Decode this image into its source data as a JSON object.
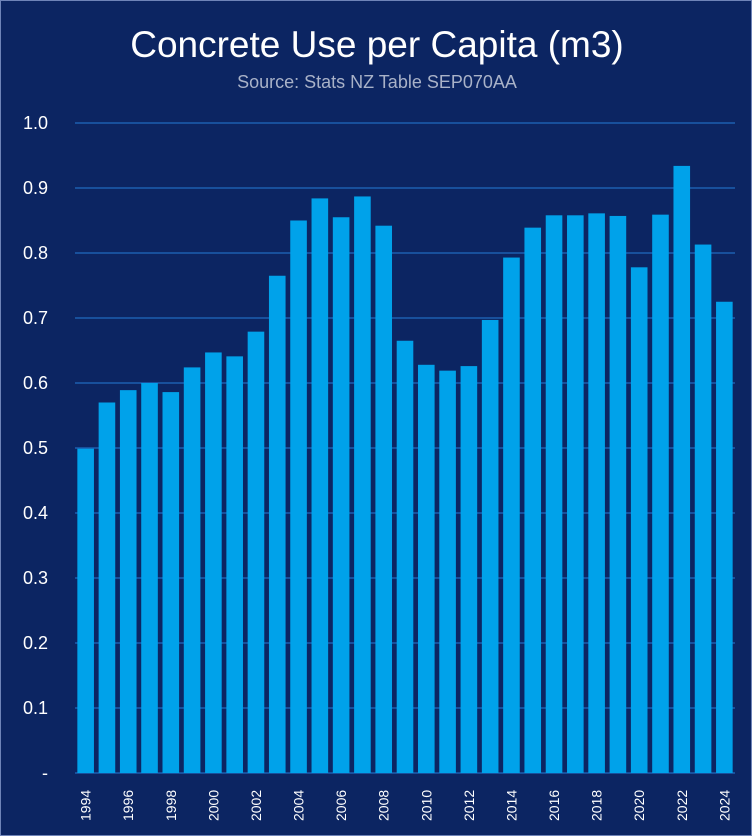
{
  "chart_data": {
    "type": "bar",
    "title": "Concrete Use per Capita (m3)",
    "subtitle": "Source: Stats NZ Table SEP070AA",
    "xlabel": "",
    "ylabel": "",
    "ylim": [
      0,
      1.0
    ],
    "y_ticks": [
      0,
      0.1,
      0.2,
      0.3,
      0.4,
      0.5,
      0.6,
      0.7,
      0.8,
      0.9,
      1.0
    ],
    "y_tick_labels": [
      "-",
      "0.1",
      "0.2",
      "0.3",
      "0.4",
      "0.5",
      "0.6",
      "0.7",
      "0.8",
      "0.9",
      "1.0"
    ],
    "categories": [
      "1994",
      "1995",
      "1996",
      "1997",
      "1998",
      "1999",
      "2000",
      "2001",
      "2002",
      "2003",
      "2004",
      "2005",
      "2006",
      "2007",
      "2008",
      "2009",
      "2010",
      "2011",
      "2012",
      "2013",
      "2014",
      "2015",
      "2016",
      "2017",
      "2018",
      "2019",
      "2020",
      "2021",
      "2022",
      "2023",
      "2024"
    ],
    "x_tick_labels": [
      "1994",
      "",
      "1996",
      "",
      "1998",
      "",
      "2000",
      "",
      "2002",
      "",
      "2004",
      "",
      "2006",
      "",
      "2008",
      "",
      "2010",
      "",
      "2012",
      "",
      "2014",
      "",
      "2016",
      "",
      "2018",
      "",
      "2020",
      "",
      "2022",
      "",
      "2024"
    ],
    "values": [
      0.499,
      0.57,
      0.589,
      0.6,
      0.586,
      0.624,
      0.647,
      0.641,
      0.679,
      0.765,
      0.85,
      0.884,
      0.855,
      0.887,
      0.842,
      0.665,
      0.628,
      0.619,
      0.626,
      0.697,
      0.793,
      0.839,
      0.858,
      0.858,
      0.861,
      0.857,
      0.778,
      0.859,
      0.934,
      0.813,
      0.725
    ],
    "grid": true,
    "legend": "none"
  },
  "colors": {
    "background": "#0c2562",
    "bar": "#00a2ea",
    "gridline": "#1d5eb0",
    "text": "#ffffff",
    "subtitle": "#a9b2c8"
  }
}
